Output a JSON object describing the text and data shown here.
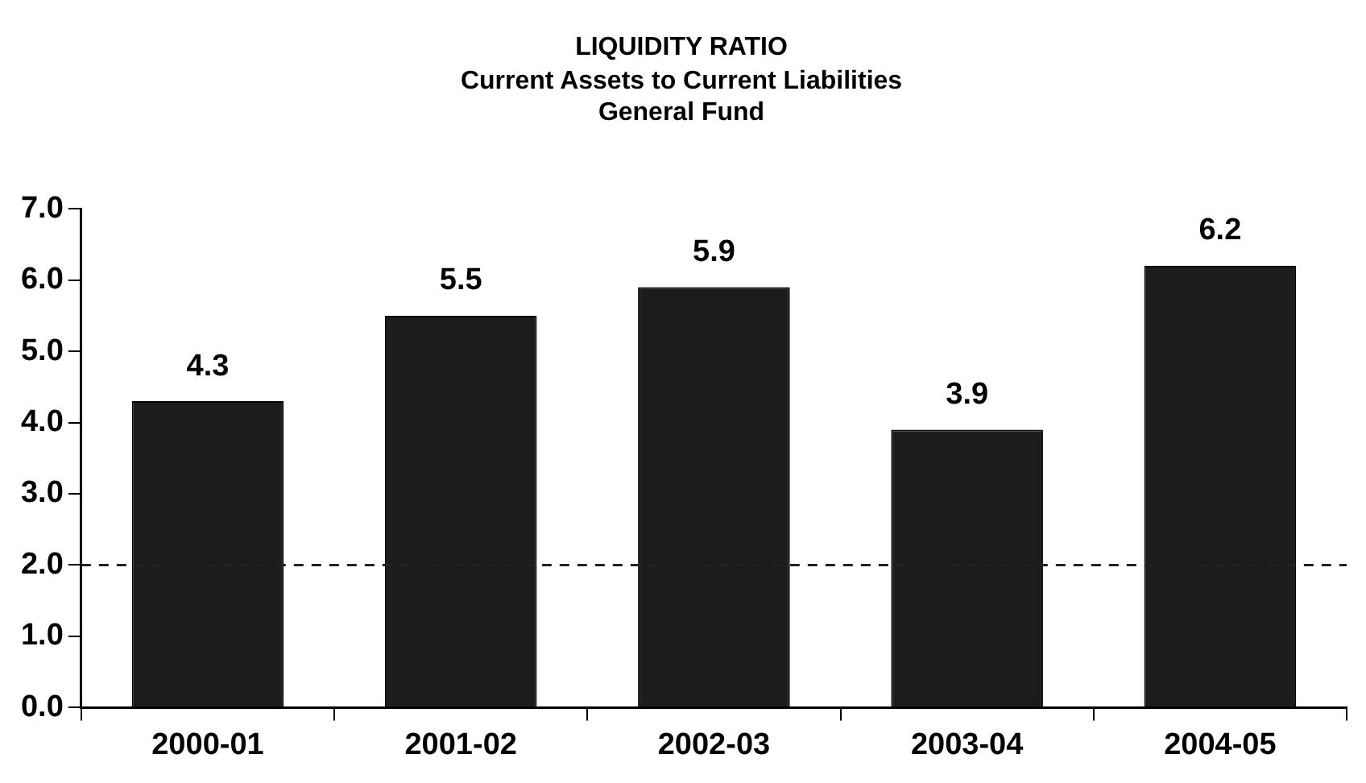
{
  "chart_data": {
    "type": "bar",
    "title": "LIQUIDITY RATIO",
    "subtitle": "Current Assets to Current Liabilities\nGeneral Fund",
    "categories": [
      "2000-01",
      "2001-02",
      "2002-03",
      "2003-04",
      "2004-05"
    ],
    "values": [
      4.3,
      5.5,
      5.9,
      3.9,
      6.2
    ],
    "color": "#1c1c1c",
    "ylim": [
      0,
      7
    ],
    "yticks": [
      {
        "value": 0,
        "label": "0.0"
      },
      {
        "value": 1,
        "label": "1.0"
      },
      {
        "value": 2,
        "label": "2.0"
      },
      {
        "value": 3,
        "label": "3.0"
      },
      {
        "value": 4,
        "label": "4.0"
      },
      {
        "value": 5,
        "label": "5.0"
      },
      {
        "value": 6,
        "label": "6.0"
      },
      {
        "value": 7,
        "label": "7.0"
      }
    ],
    "ref_lines": [
      {
        "axis": "y",
        "value": 2,
        "color": "#222222",
        "line_style": "dashed"
      }
    ],
    "data_labels": true,
    "grid": false,
    "legend": false
  }
}
